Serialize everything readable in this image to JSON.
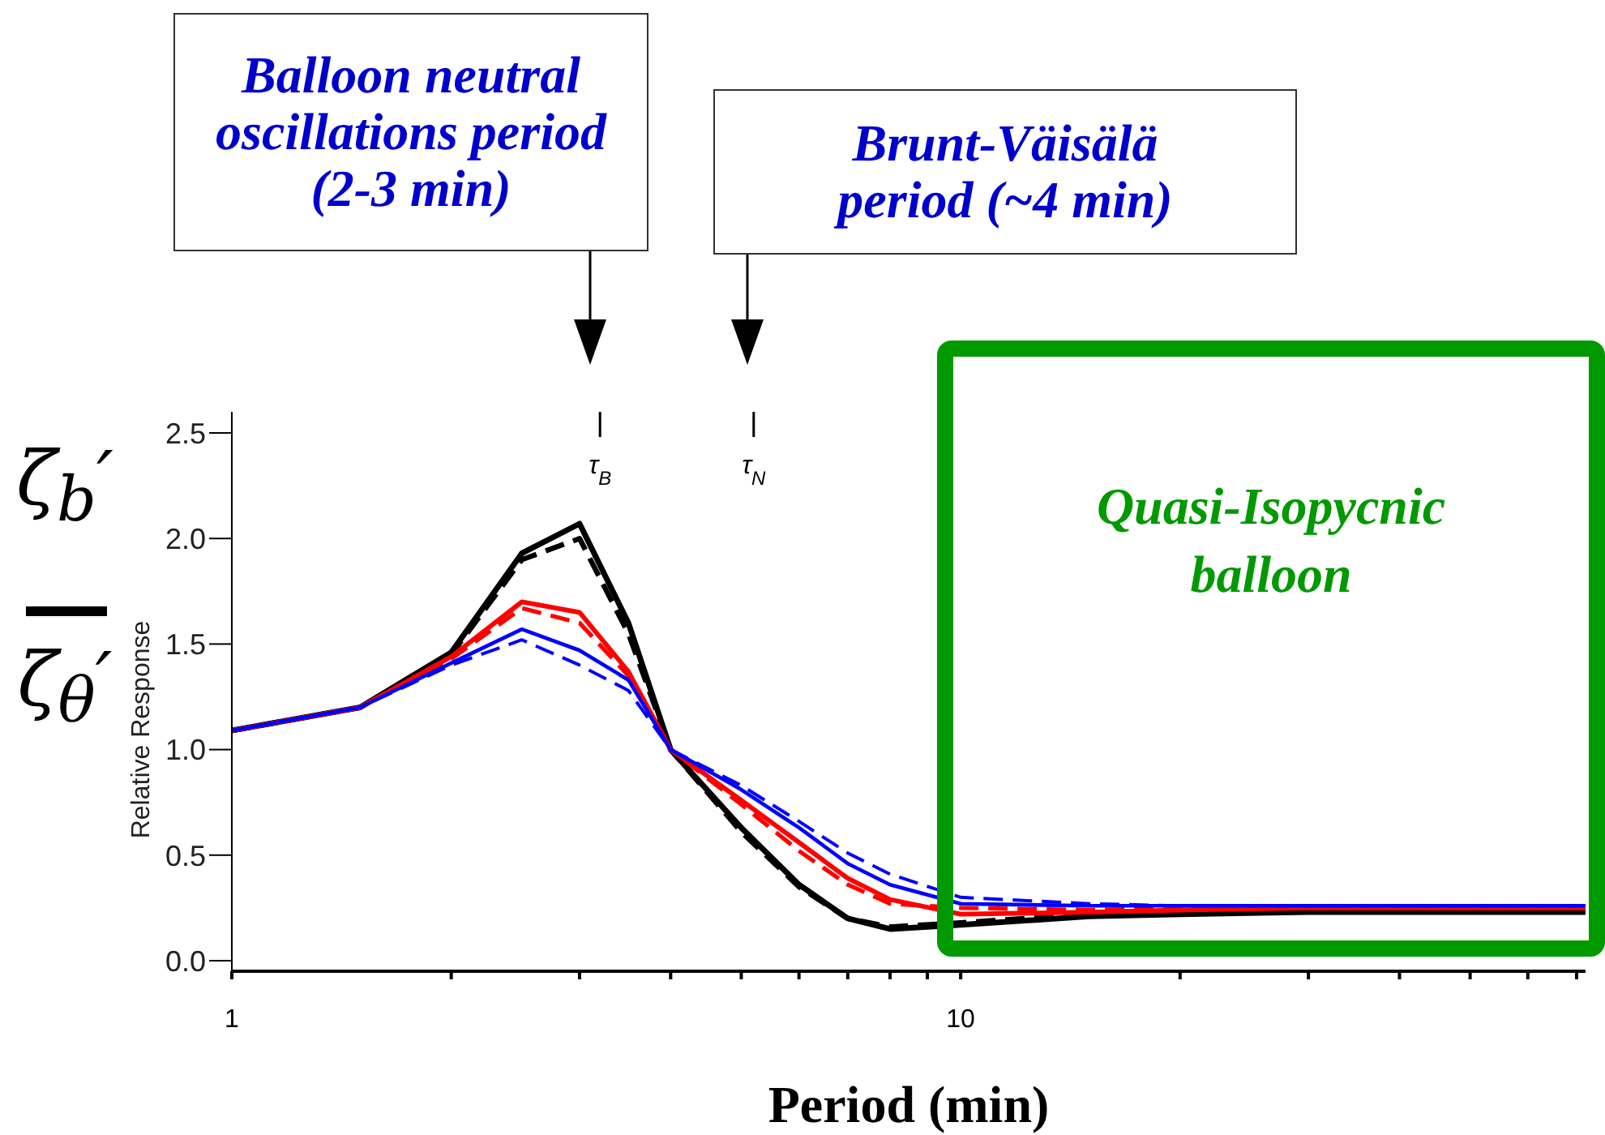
{
  "chart_data": {
    "type": "line",
    "xlabel": "Period (min)",
    "ylabel": "Relative Response",
    "log": "x",
    "grid": false,
    "marker": "none",
    "x": [
      1,
      1.5,
      2,
      2.5,
      3,
      3.5,
      4,
      5,
      6,
      7,
      8,
      10,
      15,
      20,
      30,
      50,
      72
    ],
    "xlim": [
      1,
      72
    ],
    "xticks": [
      1,
      {
        "value": 2,
        "label": null
      },
      {
        "value": 3,
        "label": null
      },
      {
        "value": 4,
        "label": null
      },
      {
        "value": 5,
        "label": null
      },
      {
        "value": 6,
        "label": null
      },
      {
        "value": 7,
        "label": null
      },
      {
        "value": 8,
        "label": null
      },
      {
        "value": 9,
        "label": null
      },
      10,
      {
        "value": 20,
        "label": null
      },
      {
        "value": 30,
        "label": null
      },
      {
        "value": 40,
        "label": null
      },
      {
        "value": 50,
        "label": null
      },
      {
        "value": 60,
        "label": null
      },
      {
        "value": 70,
        "label": null
      }
    ],
    "ylim": [
      -0.05,
      2.6
    ],
    "yticks": [
      {
        "value": 0,
        "label": "0.0"
      },
      0.5,
      {
        "value": 1,
        "label": "1.0"
      },
      1.5,
      {
        "value": 2,
        "label": "2.0"
      },
      2.5
    ],
    "series": [
      {
        "color": "#000000",
        "line_style": "solid",
        "values": [
          1.09,
          1.2,
          1.46,
          1.93,
          2.07,
          1.6,
          1.0,
          0.63,
          0.36,
          0.2,
          0.15,
          0.17,
          0.21,
          0.22,
          0.23,
          0.23,
          0.23
        ]
      },
      {
        "color": "#000000",
        "line_style": "dashed",
        "values": [
          1.09,
          1.2,
          1.45,
          1.9,
          2.0,
          1.55,
          1.0,
          0.61,
          0.35,
          0.2,
          0.16,
          0.18,
          0.22,
          0.23,
          0.24,
          0.24,
          0.24
        ]
      },
      {
        "color": "#ff0000",
        "line_style": "solid",
        "values": [
          1.09,
          1.2,
          1.44,
          1.7,
          1.65,
          1.37,
          1.0,
          0.76,
          0.56,
          0.39,
          0.29,
          0.22,
          0.23,
          0.24,
          0.25,
          0.25,
          0.25
        ]
      },
      {
        "color": "#ff0000",
        "line_style": "dashed",
        "values": [
          1.09,
          1.2,
          1.43,
          1.67,
          1.6,
          1.35,
          1.0,
          0.74,
          0.52,
          0.36,
          0.27,
          0.25,
          0.24,
          0.25,
          0.25,
          0.25,
          0.25
        ]
      },
      {
        "color": "#0000ff",
        "line_style": "solid",
        "values": [
          1.09,
          1.2,
          1.41,
          1.57,
          1.47,
          1.33,
          1.0,
          0.81,
          0.63,
          0.46,
          0.36,
          0.27,
          0.26,
          0.26,
          0.26,
          0.26,
          0.26
        ]
      },
      {
        "color": "#0000ff",
        "line_style": "dashed",
        "values": [
          1.09,
          1.2,
          1.4,
          1.52,
          1.4,
          1.28,
          1.0,
          0.83,
          0.66,
          0.51,
          0.41,
          0.3,
          0.27,
          0.26,
          0.26,
          0.26,
          0.26
        ]
      }
    ],
    "ref_lines": [
      {
        "axis": "x",
        "value": 3.2,
        "label": "τ$_{B}$"
      },
      {
        "axis": "x",
        "value": 5.2,
        "label": "τ$_{N}$"
      }
    ],
    "annotations": [
      "Balloon neutral oscillations period (2-3 min)",
      "Brunt-Väisälä period (~4 min)",
      "ζ$_{b}$′",
      "ζ$_{θ}$′",
      "Quasi-Isopycnic balloon"
    ]
  }
}
